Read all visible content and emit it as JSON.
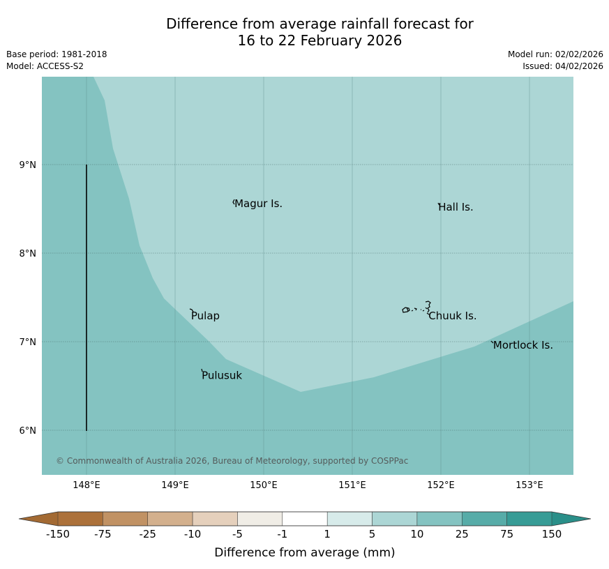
{
  "title": {
    "line1": "Difference from average rainfall forecast for",
    "line2": "16 to 22 February 2026"
  },
  "meta": {
    "base_period": "Base period: 1981-2018",
    "model": "Model: ACCESS-S2",
    "model_run": "Model run: 02/02/2026",
    "issued": "Issued: 04/02/2026"
  },
  "map": {
    "longitude_ticks": [
      {
        "value": 148,
        "label": "148°E"
      },
      {
        "value": 149,
        "label": "149°E"
      },
      {
        "value": 150,
        "label": "150°E"
      },
      {
        "value": 151,
        "label": "151°E"
      },
      {
        "value": 152,
        "label": "152°E"
      },
      {
        "value": 153,
        "label": "153°E"
      }
    ],
    "latitude_ticks": [
      {
        "value": 9,
        "label": "9°N"
      },
      {
        "value": 8,
        "label": "8°N"
      },
      {
        "value": 7,
        "label": "7°N"
      },
      {
        "value": 6,
        "label": "6°N"
      }
    ],
    "places": [
      {
        "name": "Magur Is.",
        "lon": 149.67,
        "lat": 8.56
      },
      {
        "name": "Hall Is.",
        "lon": 151.97,
        "lat": 8.52
      },
      {
        "name": "Pulap",
        "lon": 149.18,
        "lat": 7.29
      },
      {
        "name": "Chuuk Is.",
        "lon": 151.86,
        "lat": 7.29
      },
      {
        "name": "Mortlock Is.",
        "lon": 152.59,
        "lat": 6.96
      },
      {
        "name": "Pulusuk",
        "lon": 149.3,
        "lat": 6.62
      }
    ],
    "copyright": "© Commonwealth of Australia 2026, Bureau of Meteorology, supported by COSPPac",
    "zone_colors": {
      "low": "#84c3c1",
      "mid": "#acd6d5"
    }
  },
  "colorbar": {
    "title": "Difference from average (mm)",
    "tick_labels": [
      "-150",
      "-75",
      "-25",
      "-10",
      "-5",
      "-1",
      "1",
      "5",
      "10",
      "25",
      "75",
      "150"
    ],
    "colors": [
      "#ac713a",
      "#c19264",
      "#d3b08d",
      "#e5d0bc",
      "#f0ede6",
      "#ffffff",
      "#d7ebea",
      "#acd6d5",
      "#84c3c1",
      "#57aca8",
      "#379c96"
    ],
    "under_color": "#a36a33",
    "over_color": "#2a8f89"
  }
}
